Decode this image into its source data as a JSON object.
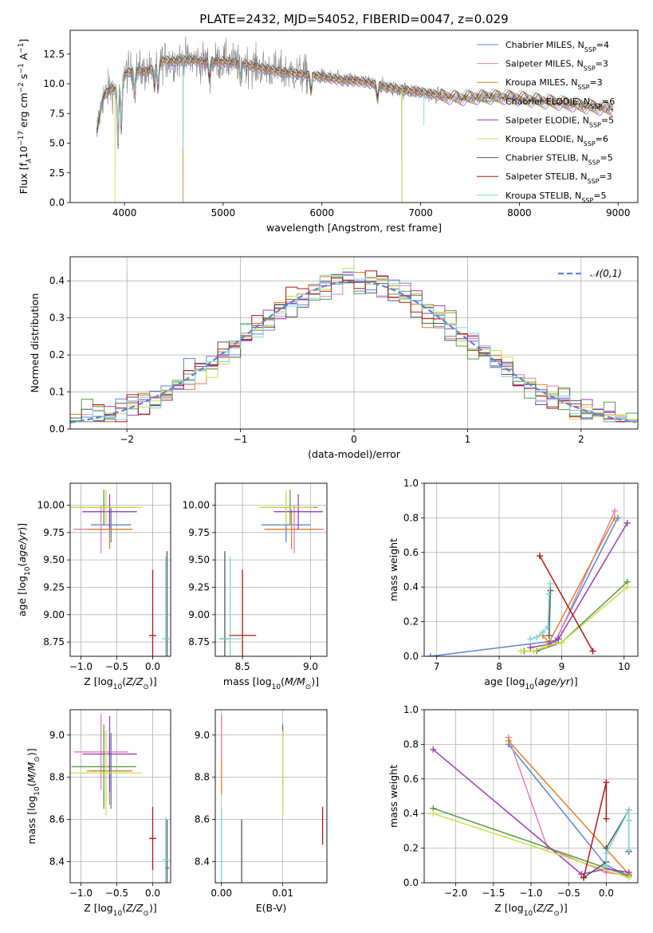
{
  "colors": {
    "Chabrier MILES": "#5b84d6",
    "Salpeter MILES": "#e07fb8",
    "Kroupa MILES": "#d9832b",
    "Chabrier ELODIE": "#5a9a4a",
    "Salpeter ELODIE": "#9b3fb0",
    "Kroupa ELODIE": "#c8e04a",
    "Chabrier STELIB": "#555555",
    "Salpeter STELIB": "#b01818",
    "Kroupa STELIB": "#7fd3d8"
  },
  "chart_data": [
    {
      "id": "spectrum",
      "type": "line",
      "title": "PLATE=2432, MJD=54052, FIBERID=0047, z=0.029",
      "xlabel": "wavelength [Angstrom, rest frame]",
      "ylabel": "Flux [f",
      "ylabel_parts": {
        "lambda": "λ",
        "ten": "10",
        "exp1": "−17",
        "unit": " erg cm",
        "exp2": "−2",
        "s": " s",
        "exp3": "−1",
        "A": " A",
        "exp4": "−1",
        "end": "]"
      },
      "xlim": [
        3450,
        9200
      ],
      "ylim": [
        0,
        14.5
      ],
      "xticks": [
        4000,
        5000,
        6000,
        7000,
        8000,
        9000
      ],
      "yticks": [
        0.0,
        2.5,
        5.0,
        7.5,
        10.0,
        12.5
      ],
      "ytick_labels": [
        "0.0",
        "2.5",
        "5.0",
        "7.5",
        "10.0",
        "12.5"
      ],
      "continuum": {
        "wavelength": [
          3720,
          3780,
          3850,
          3900,
          3950,
          4000,
          4100,
          4200,
          4300,
          4400,
          4500,
          4600,
          4700,
          4800,
          5000,
          5200,
          5400,
          5600,
          5800,
          6000,
          6200,
          6400,
          6600,
          6800,
          7000,
          7200,
          7400,
          7600,
          7800,
          8000,
          8200,
          8400,
          8600,
          8800,
          8950
        ],
        "flux": [
          6.0,
          8.8,
          9.6,
          9.5,
          9.8,
          10.8,
          11.2,
          11.0,
          11.3,
          12.0,
          11.9,
          12.0,
          12.0,
          11.8,
          11.9,
          11.7,
          11.3,
          11.0,
          10.8,
          10.6,
          10.3,
          10.2,
          9.8,
          9.5,
          9.3,
          9.0,
          8.8,
          8.9,
          8.9,
          8.8,
          8.6,
          8.4,
          8.2,
          8.0,
          7.9
        ]
      },
      "series": [
        {
          "name": "Chabrier MILES",
          "nssp": "4"
        },
        {
          "name": "Salpeter MILES",
          "nssp": "3"
        },
        {
          "name": "Kroupa MILES",
          "nssp": "3"
        },
        {
          "name": "Chabrier ELODIE",
          "nssp": "6"
        },
        {
          "name": "Salpeter ELODIE",
          "nssp": "5"
        },
        {
          "name": "Kroupa ELODIE",
          "nssp": "6"
        },
        {
          "name": "Chabrier STELIB",
          "nssp": "5"
        },
        {
          "name": "Salpeter STELIB",
          "nssp": "3"
        },
        {
          "name": "Kroupa STELIB",
          "nssp": "5"
        }
      ],
      "legend": "top-right",
      "legend_prefix": "N",
      "legend_sub": "SSP"
    },
    {
      "id": "residuals",
      "type": "histogram",
      "xlabel": "(data-model)/error",
      "ylabel": "Normed distribution",
      "xlim": [
        -2.5,
        2.5
      ],
      "ylim": [
        0,
        0.465
      ],
      "xticks": [
        -2,
        -1,
        0,
        1,
        2
      ],
      "xtick_labels": [
        "−2",
        "−1",
        "0",
        "1",
        "2"
      ],
      "yticks": [
        0.0,
        0.1,
        0.2,
        0.3,
        0.4
      ],
      "ytick_labels": [
        "0.0",
        "0.1",
        "0.2",
        "0.3",
        "0.4"
      ],
      "bin_width": 0.1,
      "reference": {
        "name": "𝒩(0,1)",
        "mean": 0,
        "sigma": 1
      },
      "legend": "top-right",
      "grid": true
    },
    {
      "id": "age-vs-Z",
      "type": "scatter",
      "xlabel": "Z [log",
      "xlabel_parts": {
        "sub": "10",
        "mid": "(",
        "var": "Z/Z",
        "sub2": "⊙",
        "end": ")]"
      },
      "ylabel": "age  [log",
      "ylabel_parts": {
        "sub": "10",
        "mid": "(",
        "var": "age/yr",
        "end": ")]"
      },
      "xlim": [
        -1.15,
        0.25
      ],
      "ylim": [
        8.62,
        10.2
      ],
      "xticks": [
        -1.0,
        -0.5,
        0.0
      ],
      "xtick_labels": [
        "−1.0",
        "−0.5",
        "0.0"
      ],
      "yticks": [
        8.75,
        9.0,
        9.25,
        9.5,
        9.75,
        10.0
      ],
      "ytick_labels": [
        "8.75",
        "9.00",
        "9.25",
        "9.50",
        "9.75",
        "10.00"
      ],
      "points": [
        {
          "series": "Chabrier MILES",
          "x": -0.58,
          "y": 9.82,
          "xerr": 0.28,
          "yerr": 0.16
        },
        {
          "series": "Salpeter MILES",
          "x": -0.72,
          "y": 9.78,
          "xerr": 0.38,
          "yerr": 0.22
        },
        {
          "series": "Kroupa MILES",
          "x": -0.6,
          "y": 9.78,
          "xerr": 0.32,
          "yerr": 0.18
        },
        {
          "series": "Chabrier ELODIE",
          "x": -0.68,
          "y": 9.98,
          "xerr": 0.45,
          "yerr": 0.16
        },
        {
          "series": "Salpeter ELODIE",
          "x": -0.6,
          "y": 9.94,
          "xerr": 0.38,
          "yerr": 0.16
        },
        {
          "series": "Kroupa ELODIE",
          "x": -0.65,
          "y": 9.98,
          "xerr": 0.5,
          "yerr": 0.16
        },
        {
          "series": "Chabrier STELIB",
          "x": 0.2,
          "y": 8.78,
          "xerr": 0.03,
          "yerr": 0.8
        },
        {
          "series": "Salpeter STELIB",
          "x": 0.0,
          "y": 8.81,
          "xerr": 0.05,
          "yerr": 0.6
        },
        {
          "series": "Kroupa STELIB",
          "x": 0.18,
          "y": 8.78,
          "xerr": 0.05,
          "yerr": 0.75
        }
      ]
    },
    {
      "id": "age-vs-mass",
      "type": "scatter",
      "xlabel": "mass [log",
      "xlabel_parts": {
        "sub": "10",
        "mid": "(",
        "var": "M/M",
        "sub2": "⊙",
        "end": ")]"
      },
      "xlim": [
        8.3,
        9.12
      ],
      "ylim": [
        8.62,
        10.2
      ],
      "xticks": [
        8.5,
        9.0
      ],
      "xtick_labels": [
        "8.5",
        "9.0"
      ],
      "yticks": [
        8.75,
        9.0,
        9.25,
        9.5,
        9.75,
        10.0
      ],
      "ytick_labels": [
        "8.75",
        "9.00",
        "9.25",
        "9.50",
        "9.75",
        "10.00"
      ],
      "points": [
        {
          "series": "Chabrier MILES",
          "x": 8.82,
          "y": 9.82,
          "xerr": 0.18,
          "yerr": 0.16
        },
        {
          "series": "Salpeter MILES",
          "x": 8.88,
          "y": 9.78,
          "xerr": 0.22,
          "yerr": 0.22
        },
        {
          "series": "Kroupa MILES",
          "x": 8.86,
          "y": 9.78,
          "xerr": 0.2,
          "yerr": 0.18
        },
        {
          "series": "Chabrier ELODIE",
          "x": 8.85,
          "y": 9.98,
          "xerr": 0.2,
          "yerr": 0.16
        },
        {
          "series": "Salpeter ELODIE",
          "x": 8.91,
          "y": 9.94,
          "xerr": 0.18,
          "yerr": 0.16
        },
        {
          "series": "Kroupa ELODIE",
          "x": 8.82,
          "y": 9.98,
          "xerr": 0.2,
          "yerr": 0.16
        },
        {
          "series": "Chabrier STELIB",
          "x": 8.37,
          "y": 8.78,
          "xerr": 0.04,
          "yerr": 0.8
        },
        {
          "series": "Salpeter STELIB",
          "x": 8.5,
          "y": 8.81,
          "xerr": 0.1,
          "yerr": 0.6
        },
        {
          "series": "Kroupa STELIB",
          "x": 8.41,
          "y": 8.78,
          "xerr": 0.08,
          "yerr": 0.75
        }
      ]
    },
    {
      "id": "weight-vs-age",
      "type": "line",
      "xlabel": "age  [log",
      "xlabel_parts": {
        "sub": "10",
        "mid": "(",
        "var": "age/yr",
        "end": ")]"
      },
      "ylabel": "mass weight",
      "xlim": [
        6.8,
        10.22
      ],
      "ylim": [
        0,
        1.0
      ],
      "xticks": [
        7,
        8,
        9,
        10
      ],
      "xtick_labels": [
        "7",
        "8",
        "9",
        "10"
      ],
      "yticks": [
        0.0,
        0.2,
        0.4,
        0.6,
        0.8,
        1.0
      ],
      "ytick_labels": [
        "0.0",
        "0.2",
        "0.4",
        "0.6",
        "0.8",
        "1.0"
      ],
      "grid": true,
      "series": [
        {
          "name": "Chabrier MILES",
          "x": [
            6.9,
            8.9,
            9.9
          ],
          "y": [
            0.0,
            0.09,
            0.8
          ]
        },
        {
          "name": "Salpeter MILES",
          "x": [
            8.9,
            9.85
          ],
          "y": [
            0.08,
            0.84
          ]
        },
        {
          "name": "Kroupa MILES",
          "x": [
            8.7,
            8.8,
            9.85
          ],
          "y": [
            0.12,
            0.08,
            0.8
          ]
        },
        {
          "name": "Chabrier ELODIE",
          "x": [
            8.4,
            8.6,
            9.0,
            10.05
          ],
          "y": [
            0.03,
            0.03,
            0.08,
            0.43
          ]
        },
        {
          "name": "Salpeter ELODIE",
          "x": [
            8.5,
            8.8,
            8.95,
            10.05
          ],
          "y": [
            0.05,
            0.07,
            0.1,
            0.77
          ]
        },
        {
          "name": "Kroupa ELODIE",
          "x": [
            8.35,
            8.55,
            8.75,
            9.0,
            10.05
          ],
          "y": [
            0.03,
            0.03,
            0.06,
            0.08,
            0.4
          ]
        },
        {
          "name": "Chabrier STELIB",
          "x": [
            8.8,
            8.82
          ],
          "y": [
            0.12,
            0.38
          ]
        },
        {
          "name": "Salpeter STELIB",
          "x": [
            8.65,
            9.5
          ],
          "y": [
            0.58,
            0.03
          ]
        },
        {
          "name": "Kroupa STELIB",
          "x": [
            8.5,
            8.6,
            8.7,
            8.78,
            8.8,
            8.82
          ],
          "y": [
            0.1,
            0.11,
            0.14,
            0.17,
            0.36,
            0.42
          ]
        }
      ]
    },
    {
      "id": "mass-vs-Z",
      "type": "scatter",
      "xlabel": "Z [log",
      "xlabel_parts": {
        "sub": "10",
        "mid": "(",
        "var": "Z/Z",
        "sub2": "⊙",
        "end": ")]"
      },
      "ylabel": "mass [log",
      "ylabel_parts": {
        "sub": "10",
        "mid": "(",
        "var": "M/M",
        "sub2": "⊙",
        "end": ")]"
      },
      "xlim": [
        -1.15,
        0.25
      ],
      "ylim": [
        8.3,
        9.12
      ],
      "xticks": [
        -1.0,
        -0.5,
        0.0
      ],
      "xtick_labels": [
        "−1.0",
        "−0.5",
        "0.0"
      ],
      "yticks": [
        8.4,
        8.6,
        8.8,
        9.0
      ],
      "ytick_labels": [
        "8.4",
        "8.6",
        "8.8",
        "9.0"
      ],
      "points": [
        {
          "series": "Chabrier MILES",
          "x": -0.58,
          "y": 8.83,
          "xerr": 0.28,
          "yerr": 0.18
        },
        {
          "series": "Salpeter MILES",
          "x": -0.72,
          "y": 8.92,
          "xerr": 0.38,
          "yerr": 0.18
        },
        {
          "series": "Kroupa MILES",
          "x": -0.6,
          "y": 8.83,
          "xerr": 0.32,
          "yerr": 0.16
        },
        {
          "series": "Chabrier ELODIE",
          "x": -0.68,
          "y": 8.85,
          "xerr": 0.45,
          "yerr": 0.2
        },
        {
          "series": "Salpeter ELODIE",
          "x": -0.6,
          "y": 8.91,
          "xerr": 0.38,
          "yerr": 0.18
        },
        {
          "series": "Kroupa ELODIE",
          "x": -0.65,
          "y": 8.82,
          "xerr": 0.5,
          "yerr": 0.2
        },
        {
          "series": "Chabrier STELIB",
          "x": 0.2,
          "y": 8.37,
          "xerr": 0.03,
          "yerr": 0.23
        },
        {
          "series": "Salpeter STELIB",
          "x": 0.0,
          "y": 8.51,
          "xerr": 0.05,
          "yerr": 0.15
        },
        {
          "series": "Kroupa STELIB",
          "x": 0.18,
          "y": 8.41,
          "xerr": 0.05,
          "yerr": 0.2
        }
      ]
    },
    {
      "id": "mass-vs-EBV",
      "type": "scatter",
      "xlabel": "E(B-V)",
      "xlim": [
        -0.001,
        0.0172
      ],
      "ylim": [
        8.3,
        9.12
      ],
      "xticks": [
        0.0,
        0.01
      ],
      "xtick_labels": [
        "0.00",
        "0.01"
      ],
      "yticks": [
        8.4,
        8.6,
        8.8,
        9.0
      ],
      "ytick_labels": [
        "8.4",
        "8.6",
        "8.8",
        "9.0"
      ],
      "points": [
        {
          "series": "Kroupa MILES",
          "x": 0.0,
          "y": 8.9,
          "xerr": 0,
          "yerr": 0.18
        },
        {
          "series": "Salpeter MILES",
          "x": 0.0,
          "y": 9.0,
          "xerr": 0,
          "yerr": 0.1
        },
        {
          "series": "Kroupa STELIB",
          "x": 0.0,
          "y": 8.45,
          "xerr": 0,
          "yerr": 0.2
        },
        {
          "series": "Chabrier STELIB",
          "x": 0.0033,
          "y": 8.42,
          "xerr": 0,
          "yerr": 0.18
        },
        {
          "series": "Salpeter ELODIE",
          "x": 0.01,
          "y": 8.85,
          "xerr": 0,
          "yerr": 0.2
        },
        {
          "series": "Kroupa ELODIE",
          "x": 0.01,
          "y": 8.82,
          "xerr": 0,
          "yerr": 0.2
        },
        {
          "series": "Salpeter STELIB",
          "x": 0.0165,
          "y": 8.57,
          "xerr": 0,
          "yerr": 0.09
        }
      ]
    },
    {
      "id": "weight-vs-Z",
      "type": "line",
      "xlabel": "Z [log",
      "xlabel_parts": {
        "sub": "10",
        "mid": "(",
        "var": "Z/Z",
        "sub2": "⊙",
        "end": ")]"
      },
      "ylabel": "mass weight",
      "xlim": [
        -2.42,
        0.42
      ],
      "ylim": [
        0,
        1.0
      ],
      "xticks": [
        -2.0,
        -1.5,
        -1.0,
        -0.5,
        0.0
      ],
      "xtick_labels": [
        "−2.0",
        "−1.5",
        "−1.0",
        "−0.5",
        "0.0"
      ],
      "yticks": [
        0.0,
        0.2,
        0.4,
        0.6,
        0.8,
        1.0
      ],
      "ytick_labels": [
        "0.0",
        "0.2",
        "0.4",
        "0.6",
        "0.8",
        "1.0"
      ],
      "grid": true,
      "series": [
        {
          "name": "Chabrier MILES",
          "x": [
            -1.3,
            0.0,
            0.3
          ],
          "y": [
            0.8,
            0.1,
            0.04
          ]
        },
        {
          "name": "Salpeter MILES",
          "x": [
            -1.3,
            -0.78,
            0.0,
            0.3
          ],
          "y": [
            0.84,
            0.2,
            0.06,
            0.04
          ]
        },
        {
          "name": "Kroupa MILES",
          "x": [
            -1.3,
            0.3
          ],
          "y": [
            0.82,
            0.05
          ]
        },
        {
          "name": "Chabrier ELODIE",
          "x": [
            -2.3,
            0.3
          ],
          "y": [
            0.43,
            0.04
          ]
        },
        {
          "name": "Salpeter ELODIE",
          "x": [
            -2.3,
            -0.33,
            0.0,
            0.3
          ],
          "y": [
            0.77,
            0.05,
            0.08,
            0.06
          ]
        },
        {
          "name": "Kroupa ELODIE",
          "x": [
            -2.3,
            0.3
          ],
          "y": [
            0.4,
            0.03
          ]
        },
        {
          "name": "Chabrier STELIB",
          "x": [
            -0.3,
            0.0,
            0.0,
            0.3,
            0.3
          ],
          "y": [
            0.03,
            0.12,
            0.2,
            0.42,
            0.18
          ]
        },
        {
          "name": "Salpeter STELIB",
          "x": [
            -0.3,
            0.0,
            0.0
          ],
          "y": [
            0.03,
            0.58,
            0.37
          ]
        },
        {
          "name": "Kroupa STELIB",
          "x": [
            0.0,
            0.0,
            0.3,
            0.3,
            0.3
          ],
          "y": [
            0.1,
            0.17,
            0.42,
            0.19,
            0.36
          ]
        }
      ]
    }
  ]
}
